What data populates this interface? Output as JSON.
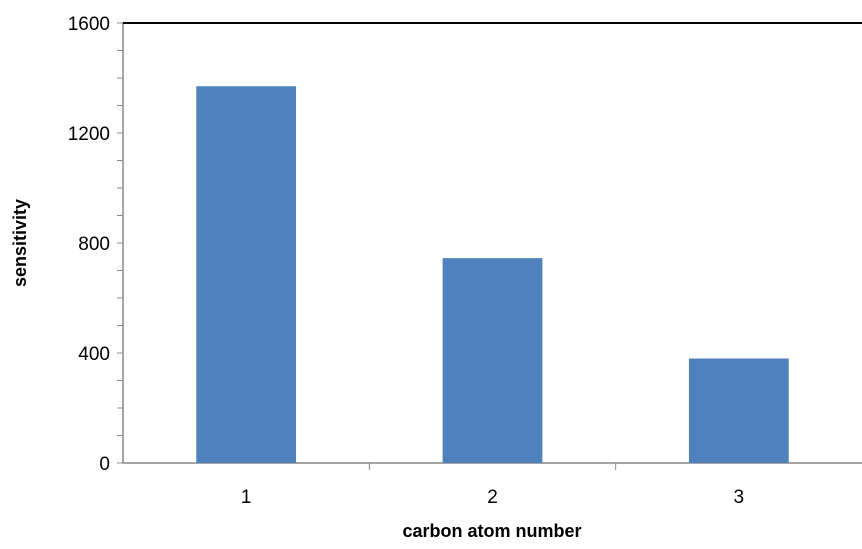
{
  "chart_data": {
    "type": "bar",
    "title": "",
    "xlabel": "carbon atom number",
    "ylabel": "sensitivity",
    "categories": [
      "1",
      "2",
      "3"
    ],
    "values": [
      1370,
      745,
      380
    ],
    "ylim": [
      0,
      1600
    ],
    "yticks": [
      0,
      400,
      800,
      1200,
      1600
    ],
    "yticks_minor_step": 100,
    "grid": false,
    "legend": "none",
    "bar_color": "#4F81BD"
  }
}
